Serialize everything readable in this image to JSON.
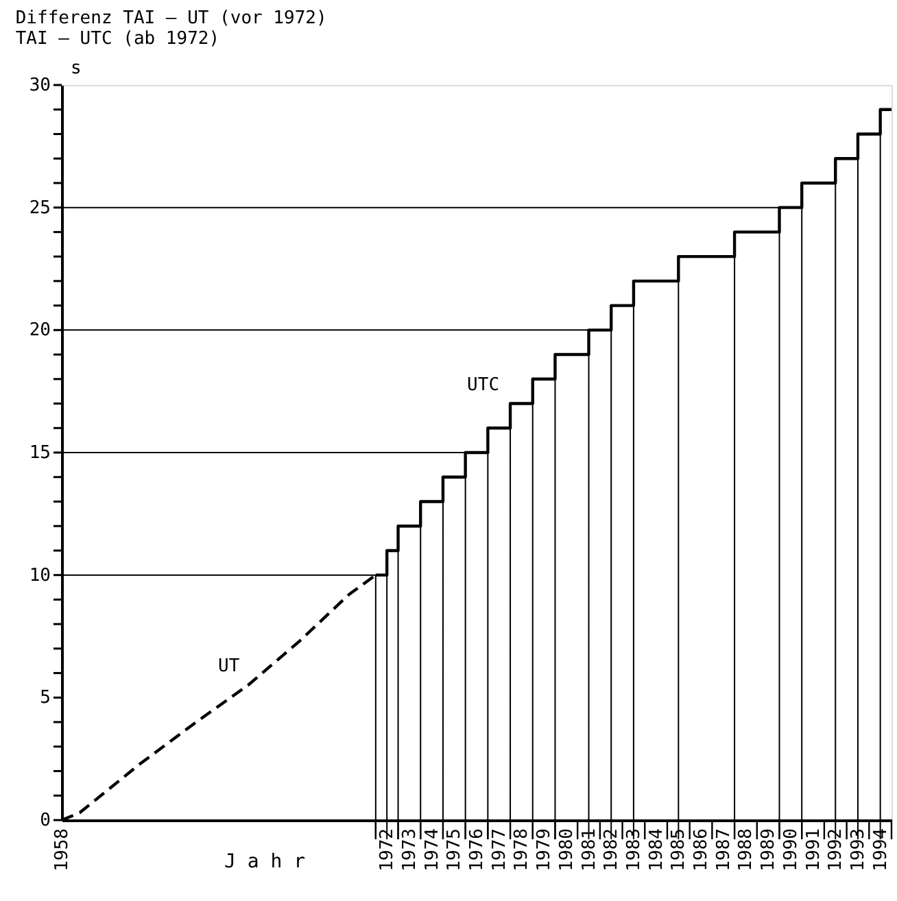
{
  "chart_data": {
    "type": "step",
    "title": "Differenz  TAI – UT  (vor 1972)",
    "subtitle": "TAI – UTC (ab  1972)",
    "xlabel": "J a h r",
    "ylabel": "s",
    "series": [
      {
        "name": "UT",
        "type": "line",
        "line_style": "dashed",
        "color": "#000000",
        "x": [
          1958,
          1958.8,
          1961.5,
          1964.0,
          1966.3,
          1968.6,
          1970.8,
          1972
        ],
        "values": [
          0,
          0.3,
          2.3,
          4.0,
          5.5,
          7.3,
          9.2,
          10
        ]
      },
      {
        "name": "UTC",
        "line_style": "solid",
        "color": "#000000",
        "x": [
          1972,
          1972.5,
          1973,
          1974,
          1975,
          1976,
          1977,
          1978,
          1979,
          1980,
          1981.5,
          1982.5,
          1983.5,
          1985.5,
          1988,
          1990,
          1991,
          1992.5,
          1993.5,
          1994.5,
          1995
        ],
        "values": [
          10,
          11,
          12,
          13,
          14,
          15,
          16,
          17,
          18,
          19,
          20,
          21,
          22,
          23,
          24,
          25,
          26,
          27,
          28,
          29,
          29
        ]
      }
    ],
    "ref_lines": [
      {
        "axis": "y",
        "value": 10,
        "color": "#000000"
      },
      {
        "axis": "y",
        "value": 15,
        "color": "#000000"
      },
      {
        "axis": "y",
        "value": 20,
        "color": "#000000"
      },
      {
        "axis": "y",
        "value": 25,
        "color": "#000000"
      },
      {
        "axis": "x",
        "value": 1972,
        "color": "#000000"
      },
      {
        "axis": "x",
        "value": 1972.5,
        "color": "#000000"
      },
      {
        "axis": "x",
        "value": 1973,
        "color": "#000000"
      },
      {
        "axis": "x",
        "value": 1974,
        "color": "#000000"
      },
      {
        "axis": "x",
        "value": 1975,
        "color": "#000000"
      },
      {
        "axis": "x",
        "value": 1976,
        "color": "#000000"
      },
      {
        "axis": "x",
        "value": 1977,
        "color": "#000000"
      },
      {
        "axis": "x",
        "value": 1978,
        "color": "#000000"
      },
      {
        "axis": "x",
        "value": 1979,
        "color": "#000000"
      },
      {
        "axis": "x",
        "value": 1980,
        "color": "#000000"
      },
      {
        "axis": "x",
        "value": 1981.5,
        "color": "#000000"
      },
      {
        "axis": "x",
        "value": 1982.5,
        "color": "#000000"
      },
      {
        "axis": "x",
        "value": 1983.5,
        "color": "#000000"
      },
      {
        "axis": "x",
        "value": 1985.5,
        "color": "#000000"
      },
      {
        "axis": "x",
        "value": 1988,
        "color": "#000000"
      },
      {
        "axis": "x",
        "value": 1990,
        "color": "#000000"
      },
      {
        "axis": "x",
        "value": 1991,
        "color": "#000000"
      },
      {
        "axis": "x",
        "value": 1992.5,
        "color": "#000000"
      },
      {
        "axis": "x",
        "value": 1993.5,
        "color": "#000000"
      },
      {
        "axis": "x",
        "value": 1994.5,
        "color": "#000000"
      }
    ],
    "xlim": [
      1958,
      1995
    ],
    "ylim": [
      0,
      30
    ],
    "xticks": [
      {
        "value": 1958,
        "label": "1958"
      },
      {
        "value": 1972.5,
        "label": "1972"
      },
      {
        "value": 1973.5,
        "label": "1973"
      },
      {
        "value": 1974.5,
        "label": "1974"
      },
      {
        "value": 1975.5,
        "label": "1975"
      },
      {
        "value": 1976.5,
        "label": "1976"
      },
      {
        "value": 1977.5,
        "label": "1977"
      },
      {
        "value": 1978.5,
        "label": "1978"
      },
      {
        "value": 1979.5,
        "label": "1979"
      },
      {
        "value": 1980.5,
        "label": "1980"
      },
      {
        "value": 1981.5,
        "label": "1981"
      },
      {
        "value": 1982.5,
        "label": "1982"
      },
      {
        "value": 1983.5,
        "label": "1983"
      },
      {
        "value": 1984.5,
        "label": "1984"
      },
      {
        "value": 1985.5,
        "label": "1985"
      },
      {
        "value": 1986.5,
        "label": "1986"
      },
      {
        "value": 1987.5,
        "label": "1987"
      },
      {
        "value": 1988.5,
        "label": "1988"
      },
      {
        "value": 1989.5,
        "label": "1989"
      },
      {
        "value": 1990.5,
        "label": "1990"
      },
      {
        "value": 1991.5,
        "label": "1991"
      },
      {
        "value": 1992.5,
        "label": "1992"
      },
      {
        "value": 1993.5,
        "label": "1993"
      },
      {
        "value": 1994.5,
        "label": "1994"
      },
      {
        "value": 1972,
        "label": null
      },
      {
        "value": 1973,
        "label": null
      },
      {
        "value": 1974,
        "label": null
      },
      {
        "value": 1975,
        "label": null
      },
      {
        "value": 1976,
        "label": null
      },
      {
        "value": 1977,
        "label": null
      },
      {
        "value": 1978,
        "label": null
      },
      {
        "value": 1979,
        "label": null
      },
      {
        "value": 1980,
        "label": null
      },
      {
        "value": 1981,
        "label": null
      },
      {
        "value": 1982,
        "label": null
      },
      {
        "value": 1983,
        "label": null
      },
      {
        "value": 1984,
        "label": null
      },
      {
        "value": 1985,
        "label": null
      },
      {
        "value": 1986,
        "label": null
      },
      {
        "value": 1987,
        "label": null
      },
      {
        "value": 1988,
        "label": null
      },
      {
        "value": 1989,
        "label": null
      },
      {
        "value": 1990,
        "label": null
      },
      {
        "value": 1991,
        "label": null
      },
      {
        "value": 1992,
        "label": null
      },
      {
        "value": 1993,
        "label": null
      },
      {
        "value": 1994,
        "label": null
      },
      {
        "value": 1995,
        "label": null
      }
    ],
    "yticks": [
      0,
      {
        "value": 1,
        "label": null
      },
      {
        "value": 2,
        "label": null
      },
      {
        "value": 3,
        "label": null
      },
      {
        "value": 4,
        "label": null
      },
      5,
      {
        "value": 6,
        "label": null
      },
      {
        "value": 7,
        "label": null
      },
      {
        "value": 8,
        "label": null
      },
      {
        "value": 9,
        "label": null
      },
      10,
      {
        "value": 11,
        "label": null
      },
      {
        "value": 12,
        "label": null
      },
      {
        "value": 13,
        "label": null
      },
      {
        "value": 14,
        "label": null
      },
      15,
      {
        "value": 16,
        "label": null
      },
      {
        "value": 17,
        "label": null
      },
      {
        "value": 18,
        "label": null
      },
      {
        "value": 19,
        "label": null
      },
      20,
      {
        "value": 21,
        "label": null
      },
      {
        "value": 22,
        "label": null
      },
      {
        "value": 23,
        "label": null
      },
      {
        "value": 24,
        "label": null
      },
      25,
      {
        "value": 26,
        "label": null
      },
      {
        "value": 27,
        "label": null
      },
      {
        "value": 28,
        "label": null
      },
      {
        "value": 29,
        "label": null
      },
      30
    ],
    "grid": false
  }
}
